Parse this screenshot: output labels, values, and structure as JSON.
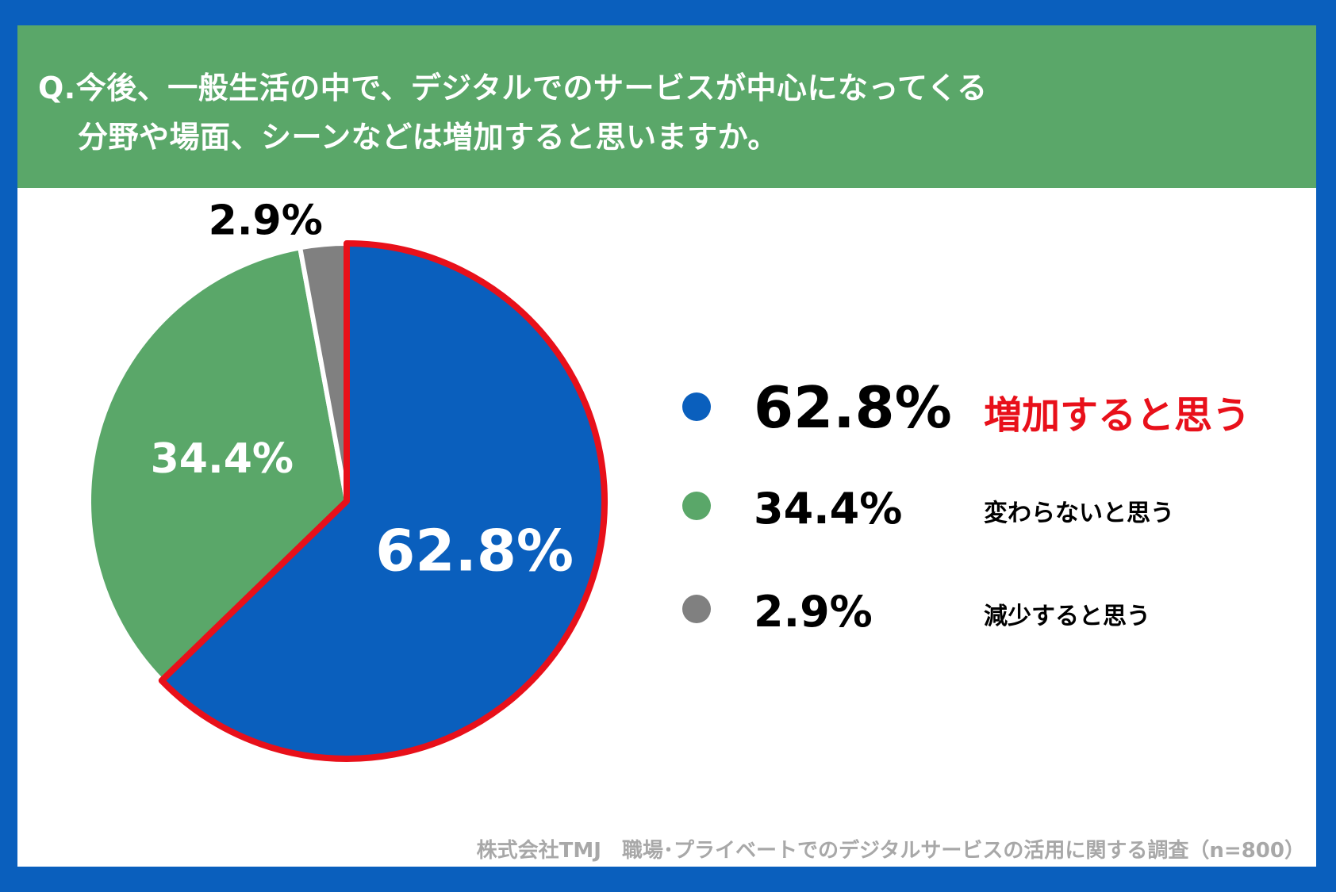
{
  "header": {
    "question_line1": "Q.今後、一般生活の中で、デジタルでのサービスが中心になってくる",
    "question_line2": "分野や場面、シーンなどは増加すると思いますか。"
  },
  "colors": {
    "border": "#0a5fbd",
    "header_bg": "#5aa769",
    "increase": "#0a5fbd",
    "same": "#5aa769",
    "decrease": "#808080",
    "highlight": "#e8101a"
  },
  "chart_data": {
    "type": "pie",
    "slices": [
      {
        "label": "増加すると思う",
        "value": 62.8,
        "display": "62.8%",
        "color": "#0a5fbd",
        "highlighted": true
      },
      {
        "label": "変わらないと思う",
        "value": 34.4,
        "display": "34.4%",
        "color": "#5aa769",
        "highlighted": false
      },
      {
        "label": "減少すると思う",
        "value": 2.9,
        "display": "2.9%",
        "color": "#808080",
        "highlighted": false
      }
    ],
    "legend_placement": "right"
  },
  "source": "株式会社TMJ　職場･プライベートでのデジタルサービスの活用に関する調査（n=800）"
}
